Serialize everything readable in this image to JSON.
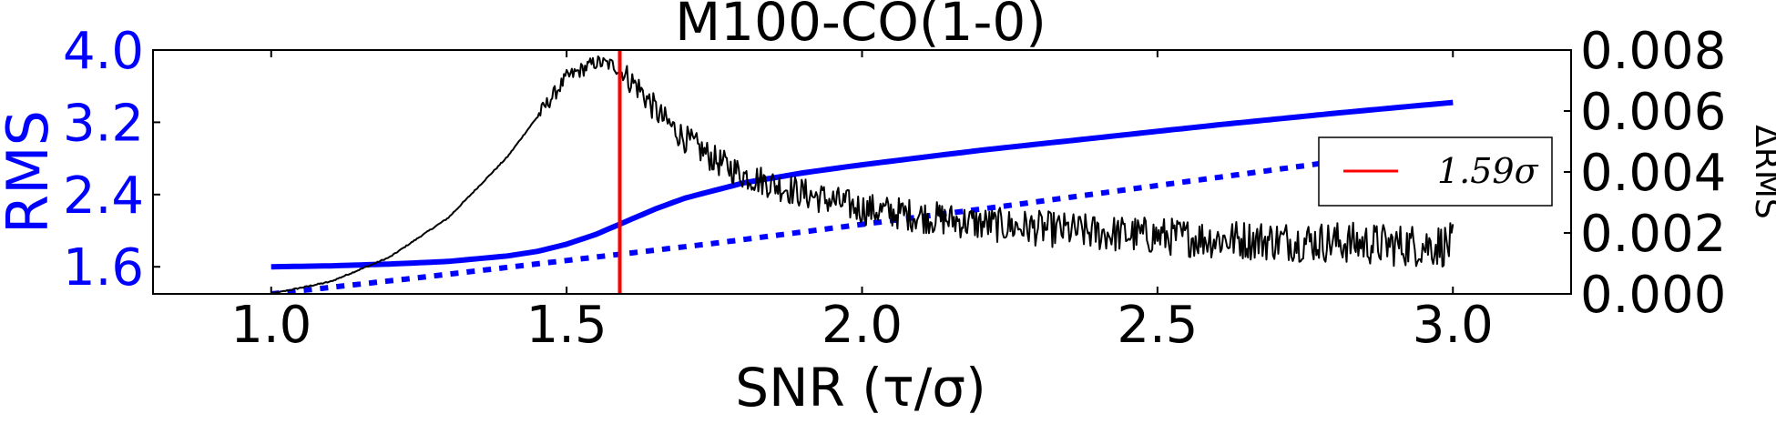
{
  "chart_data": {
    "type": "line",
    "title": "M100-CO(1-0)",
    "xlabel": "SNR (τ/σ)",
    "ylabel_left": "RMS",
    "ylabel_right": "ΔRMS",
    "xlim": [
      0.8,
      3.2
    ],
    "ylim_left": [
      1.3,
      4.0
    ],
    "ylim_right": [
      0.0,
      0.008
    ],
    "x_ticks": [
      "1.0",
      "1.5",
      "2.0",
      "2.5",
      "3.0"
    ],
    "x_tick_values": [
      1.0,
      1.5,
      2.0,
      2.5,
      3.0
    ],
    "y_left_ticks": [
      "1.6",
      "2.4",
      "3.2",
      "4.0"
    ],
    "y_left_tick_values": [
      1.6,
      2.4,
      3.2,
      4.0
    ],
    "y_right_ticks": [
      "0.000",
      "0.002",
      "0.004",
      "0.006",
      "0.008"
    ],
    "y_right_tick_values": [
      0.0,
      0.002,
      0.004,
      0.006,
      0.008
    ],
    "grid": false,
    "legend_position": "right",
    "series": [
      {
        "axis": "left",
        "style": "solid",
        "color": "#0000ff",
        "x": [
          1.0,
          1.1,
          1.2,
          1.3,
          1.4,
          1.45,
          1.5,
          1.55,
          1.6,
          1.65,
          1.7,
          1.8,
          1.9,
          2.0,
          2.2,
          2.4,
          2.6,
          2.8,
          3.0
        ],
        "y": [
          1.6,
          1.61,
          1.63,
          1.66,
          1.72,
          1.77,
          1.85,
          1.96,
          2.1,
          2.24,
          2.36,
          2.53,
          2.64,
          2.73,
          2.89,
          3.03,
          3.17,
          3.3,
          3.42
        ]
      },
      {
        "axis": "left",
        "style": "dotted",
        "color": "#0000ff",
        "x": [
          1.0,
          1.25,
          1.5,
          1.75,
          2.0,
          2.25,
          2.5,
          2.75,
          3.0
        ],
        "y": [
          1.3,
          1.48,
          1.67,
          1.86,
          2.07,
          2.28,
          2.5,
          2.72,
          2.95
        ]
      },
      {
        "axis": "right",
        "style": "solid-noisy",
        "color": "#000000",
        "x": [
          1.0,
          1.1,
          1.2,
          1.3,
          1.4,
          1.45,
          1.5,
          1.55,
          1.58,
          1.62,
          1.66,
          1.7,
          1.75,
          1.8,
          1.9,
          2.0,
          2.2,
          2.4,
          2.6,
          2.8,
          2.9,
          3.0
        ],
        "y": [
          0.0,
          0.0004,
          0.0012,
          0.0025,
          0.0045,
          0.0058,
          0.0071,
          0.0076,
          0.0075,
          0.0068,
          0.0058,
          0.0051,
          0.0044,
          0.0039,
          0.0033,
          0.0028,
          0.0023,
          0.002,
          0.0018,
          0.0017,
          0.0016,
          0.0016
        ]
      }
    ],
    "vline": {
      "x": 1.59,
      "color": "#ff0000",
      "label": "1.59σ"
    }
  }
}
